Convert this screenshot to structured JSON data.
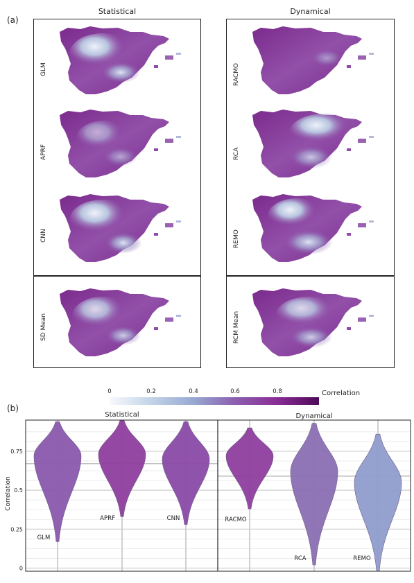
{
  "panel_a_label": "(a)",
  "panel_b_label": "(b)",
  "columns": {
    "statistical": "Statistical",
    "dynamical": "Dynamical"
  },
  "maps": {
    "statistical": [
      "GLM",
      "APRF",
      "CNN"
    ],
    "statistical_mean": "SD Mean",
    "dynamical": [
      "RACMO",
      "RCA",
      "REMO"
    ],
    "dynamical_mean": "RCM Mean"
  },
  "colorbar": {
    "label": "Correlation",
    "ticks": [
      "0",
      "0.2",
      "0.4",
      "0.6",
      "0.8"
    ],
    "tick_values": [
      0,
      0.2,
      0.4,
      0.6,
      0.8
    ],
    "range": [
      0,
      1
    ]
  },
  "colors": {
    "light": "#f5f7fb",
    "mid_blue": "#8fa3cc",
    "purple": "#8e3e9e",
    "dark": "#4d0b57"
  },
  "chart_data": {
    "type": "violin",
    "group_titles": [
      "Statistical",
      "Dynamical"
    ],
    "ylabel": "Correlation",
    "ylim": [
      -0.02,
      0.95
    ],
    "yticks": [
      0,
      0.25,
      0.5,
      0.75
    ],
    "ytick_labels": [
      "0",
      "0.25",
      "0.5",
      "0.75"
    ],
    "grid": true,
    "group_means": [
      0.67,
      0.59
    ],
    "series": [
      {
        "name": "GLM",
        "group": "Statistical",
        "min": 0.17,
        "max": 0.94,
        "mode": 0.72,
        "median": 0.64,
        "color": "#8a57ad"
      },
      {
        "name": "APRF",
        "group": "Statistical",
        "min": 0.33,
        "max": 0.95,
        "mode": 0.73,
        "median": 0.69,
        "color": "#8e3e9e"
      },
      {
        "name": "CNN",
        "group": "Statistical",
        "min": 0.28,
        "max": 0.94,
        "mode": 0.7,
        "median": 0.66,
        "color": "#8a4aa6"
      },
      {
        "name": "RACMO",
        "group": "Dynamical",
        "min": 0.38,
        "max": 0.9,
        "mode": 0.72,
        "median": 0.65,
        "color": "#8e3e9e"
      },
      {
        "name": "RCA",
        "group": "Dynamical",
        "min": 0.02,
        "max": 0.93,
        "mode": 0.62,
        "median": 0.54,
        "color": "#8a6fb3"
      },
      {
        "name": "REMO",
        "group": "Dynamical",
        "min": -0.02,
        "max": 0.86,
        "mode": 0.55,
        "median": 0.48,
        "color": "#8f9ccc"
      }
    ]
  }
}
